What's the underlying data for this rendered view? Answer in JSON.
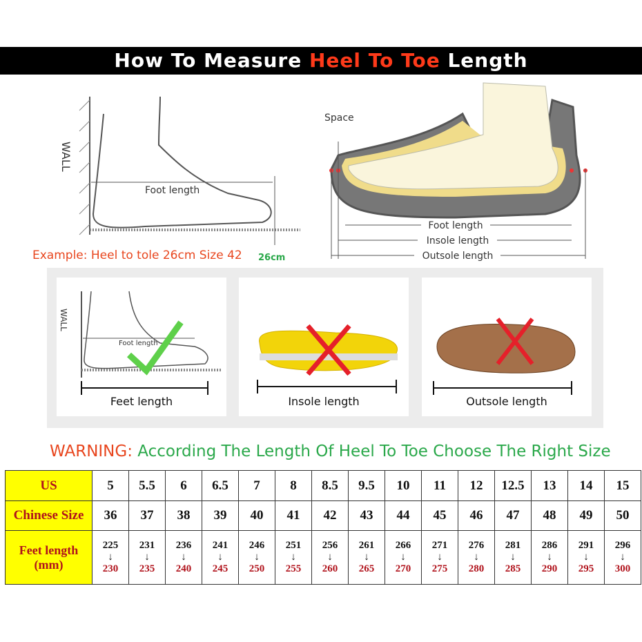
{
  "header": {
    "title_pre": "How To Measure ",
    "title_highlight": "Heel To Toe",
    "title_post": " Length"
  },
  "diagram_left": {
    "wall_label": "WALL",
    "foot_length_label": "Foot length",
    "measure_label": "26cm",
    "example": "Example: Heel to tole 26cm Size 42"
  },
  "diagram_right": {
    "space_label": "Space",
    "foot_length": "Foot length",
    "insole_length": "Insole length",
    "outsole_length": "Outsole length"
  },
  "cards": [
    {
      "caption": "Feet length",
      "wall_label": "WALL",
      "foot_label": "Foot length",
      "mark": "check"
    },
    {
      "caption": "Insole length",
      "mark": "cross"
    },
    {
      "caption": "Outsole length",
      "mark": "cross"
    }
  ],
  "warning": {
    "label": "WARNING:",
    "text": "According The Length Of Heel To Toe Choose The Right Size"
  },
  "size_table": {
    "row_headers": [
      "US",
      "Chinese Size",
      "Feet length (mm)"
    ],
    "us": [
      "5",
      "5.5",
      "6",
      "6.5",
      "7",
      "8",
      "8.5",
      "9.5",
      "10",
      "11",
      "12",
      "12.5",
      "13",
      "14",
      "15"
    ],
    "chinese": [
      "36",
      "37",
      "38",
      "39",
      "40",
      "41",
      "42",
      "43",
      "44",
      "45",
      "46",
      "47",
      "48",
      "49",
      "50"
    ],
    "feet_from": [
      "225",
      "231",
      "236",
      "241",
      "246",
      "251",
      "256",
      "261",
      "266",
      "271",
      "276",
      "281",
      "286",
      "291",
      "296"
    ],
    "feet_to": [
      "230",
      "235",
      "240",
      "245",
      "250",
      "255",
      "260",
      "265",
      "270",
      "275",
      "280",
      "285",
      "290",
      "295",
      "300"
    ],
    "arrow": "↓"
  },
  "colors": {
    "highlight_red": "#ff3a1a",
    "warning_green": "#2aa84a",
    "header_yellow": "#ffff00",
    "table_red": "#b0121b"
  }
}
